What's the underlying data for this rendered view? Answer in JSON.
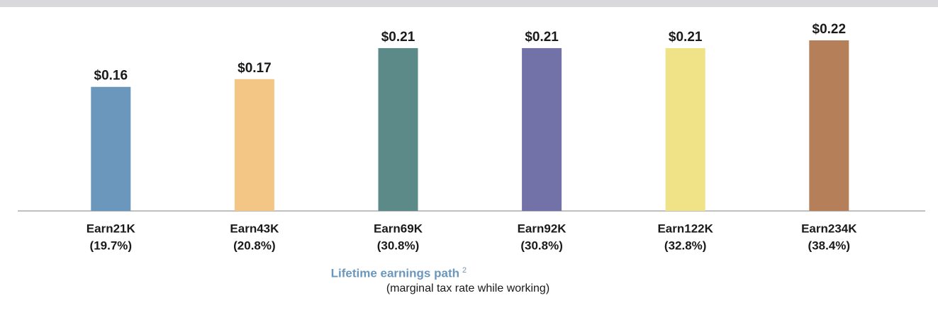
{
  "chart_data": {
    "type": "bar",
    "categories": [
      [
        "Earn21K",
        "(19.7%)"
      ],
      [
        "Earn43K",
        "(20.8%)"
      ],
      [
        "Earn69K",
        "(30.8%)"
      ],
      [
        "Earn92K",
        "(30.8%)"
      ],
      [
        "Earn122K",
        "(32.8%)"
      ],
      [
        "Earn234K",
        "(38.4%)"
      ]
    ],
    "values": [
      0.16,
      0.17,
      0.21,
      0.21,
      0.21,
      0.22
    ],
    "value_labels": [
      "$0.16",
      "$0.17",
      "$0.21",
      "$0.21",
      "$0.21",
      "$0.22"
    ],
    "colors": [
      "#6b97bd",
      "#f3c686",
      "#5b8a88",
      "#7272a8",
      "#f0e286",
      "#b57f5a"
    ],
    "x_label": "Lifetime earnings path",
    "x_label_footnote": "2",
    "x_sublabel": "(marginal tax rate while working)"
  }
}
